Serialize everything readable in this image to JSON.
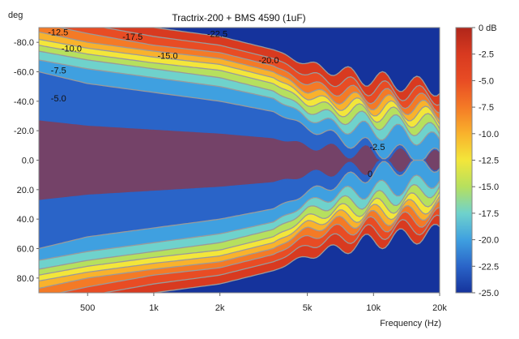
{
  "chart_data": {
    "type": "heatmap",
    "title": "Tractrix-200 + BMS 4590 (1uF)",
    "xlabel": "Frequency (Hz)",
    "ylabel": "deg",
    "x_scale": "log",
    "xlim": [
      300,
      20000
    ],
    "ylim": [
      -90,
      90
    ],
    "x_ticks": [
      {
        "value": 500,
        "label": "500"
      },
      {
        "value": 1000,
        "label": "1k"
      },
      {
        "value": 2000,
        "label": "2k"
      },
      {
        "value": 5000,
        "label": "5k"
      },
      {
        "value": 10000,
        "label": "10k"
      },
      {
        "value": 20000,
        "label": "20k"
      }
    ],
    "y_ticks": [
      {
        "value": -80,
        "label": "-80.0"
      },
      {
        "value": -60,
        "label": "-60.0"
      },
      {
        "value": -40,
        "label": "-40.0"
      },
      {
        "value": -20,
        "label": "-20.0"
      },
      {
        "value": 0,
        "label": "0.0"
      },
      {
        "value": 20,
        "label": "20.0"
      },
      {
        "value": 40,
        "label": "40.0"
      },
      {
        "value": 60,
        "label": "60.0"
      },
      {
        "value": 80,
        "label": "80.0"
      }
    ],
    "colorbar": {
      "unit": "dB",
      "min": -25,
      "max": 0,
      "ticks": [
        {
          "value": 0,
          "label": "0 dB"
        },
        {
          "value": -2.5,
          "label": "-2.5"
        },
        {
          "value": -5,
          "label": "-5.0"
        },
        {
          "value": -7.5,
          "label": "-7.5"
        },
        {
          "value": -10,
          "label": "-10.0"
        },
        {
          "value": -12.5,
          "label": "-12.5"
        },
        {
          "value": -15,
          "label": "-15.0"
        },
        {
          "value": -17.5,
          "label": "-17.5"
        },
        {
          "value": -20,
          "label": "-20.0"
        },
        {
          "value": -22.5,
          "label": "-22.5"
        },
        {
          "value": -25,
          "label": "-25.0"
        }
      ],
      "colors": [
        "#15339c",
        "#2a64c8",
        "#3fa0e0",
        "#6fd2cc",
        "#b6e05e",
        "#f3e63a",
        "#f9b22c",
        "#f47a26",
        "#e84c24",
        "#d83a20",
        "#b0261a"
      ]
    },
    "contour_levels": [
      -2.5,
      -5,
      -7.5,
      -10,
      -12.5,
      -15,
      -17.5,
      -20,
      -22.5
    ],
    "contour_color": "#9a9a9a",
    "beamwidth_half_angle_deg": {
      "-2.5": [
        [
          300,
          60
        ],
        [
          500,
          52
        ],
        [
          1000,
          46
        ],
        [
          2000,
          40
        ],
        [
          3500,
          33
        ],
        [
          5000,
          22
        ],
        [
          7000,
          15
        ],
        [
          10000,
          8
        ],
        [
          14000,
          4
        ],
        [
          20000,
          2
        ]
      ],
      "-5.0": [
        [
          300,
          68
        ],
        [
          500,
          62
        ],
        [
          1000,
          56
        ],
        [
          2000,
          50
        ],
        [
          3500,
          42
        ],
        [
          5000,
          29
        ],
        [
          7000,
          23
        ],
        [
          10000,
          20
        ],
        [
          14000,
          18
        ],
        [
          20000,
          12
        ]
      ],
      "-7.5": [
        [
          300,
          74
        ],
        [
          500,
          68
        ],
        [
          1000,
          62
        ],
        [
          2000,
          56
        ],
        [
          3500,
          47
        ],
        [
          5000,
          34
        ],
        [
          7000,
          29
        ],
        [
          10000,
          27
        ],
        [
          14000,
          24
        ],
        [
          20000,
          18
        ]
      ],
      "-10.0": [
        [
          300,
          78
        ],
        [
          500,
          72
        ],
        [
          1000,
          66
        ],
        [
          2000,
          61
        ],
        [
          3500,
          52
        ],
        [
          5000,
          39
        ],
        [
          7000,
          34
        ],
        [
          10000,
          32
        ],
        [
          14000,
          29
        ],
        [
          20000,
          24
        ]
      ],
      "-12.5": [
        [
          300,
          82
        ],
        [
          500,
          76
        ],
        [
          1000,
          70
        ],
        [
          2000,
          65
        ],
        [
          3500,
          56
        ],
        [
          5000,
          43
        ],
        [
          7000,
          38
        ],
        [
          10000,
          36
        ],
        [
          14000,
          33
        ],
        [
          20000,
          29
        ]
      ],
      "-15.0": [
        [
          300,
          87
        ],
        [
          500,
          80
        ],
        [
          1000,
          74
        ],
        [
          2000,
          69
        ],
        [
          3500,
          60
        ],
        [
          5000,
          47
        ],
        [
          7000,
          42
        ],
        [
          10000,
          40
        ],
        [
          14000,
          37
        ],
        [
          20000,
          33
        ]
      ],
      "-17.5": [
        [
          300,
          93
        ],
        [
          500,
          86
        ],
        [
          1000,
          78
        ],
        [
          2000,
          73
        ],
        [
          3500,
          64
        ],
        [
          5000,
          52
        ],
        [
          7000,
          47
        ],
        [
          10000,
          44
        ],
        [
          14000,
          41
        ],
        [
          20000,
          38
        ]
      ],
      "-20.0": [
        [
          300,
          96
        ],
        [
          500,
          92
        ],
        [
          1000,
          84
        ],
        [
          2000,
          78
        ],
        [
          3500,
          69
        ],
        [
          5000,
          58
        ],
        [
          7000,
          53
        ],
        [
          10000,
          49
        ],
        [
          14000,
          46
        ],
        [
          20000,
          43
        ]
      ],
      "-22.5": [
        [
          300,
          98
        ],
        [
          500,
          96
        ],
        [
          1000,
          90
        ],
        [
          2000,
          84
        ],
        [
          3500,
          75
        ],
        [
          5000,
          65
        ],
        [
          7000,
          60
        ],
        [
          10000,
          55
        ],
        [
          14000,
          52
        ],
        [
          20000,
          49
        ]
      ]
    },
    "annotations": [
      {
        "text": "-12.5",
        "freq": 330,
        "deg": -87
      },
      {
        "text": "-17.5",
        "freq": 720,
        "deg": -84
      },
      {
        "text": "-22.5",
        "freq": 1750,
        "deg": -86
      },
      {
        "text": "-10.0",
        "freq": 380,
        "deg": -76
      },
      {
        "text": "-15.0",
        "freq": 1040,
        "deg": -71
      },
      {
        "text": "-20.0",
        "freq": 3000,
        "deg": -68
      },
      {
        "text": "-7.5",
        "freq": 340,
        "deg": -61
      },
      {
        "text": "-5.0",
        "freq": 340,
        "deg": -42
      },
      {
        "text": "-2.5",
        "freq": 9600,
        "deg": -9
      },
      {
        "text": "0",
        "freq": 9400,
        "deg": 9
      }
    ]
  }
}
